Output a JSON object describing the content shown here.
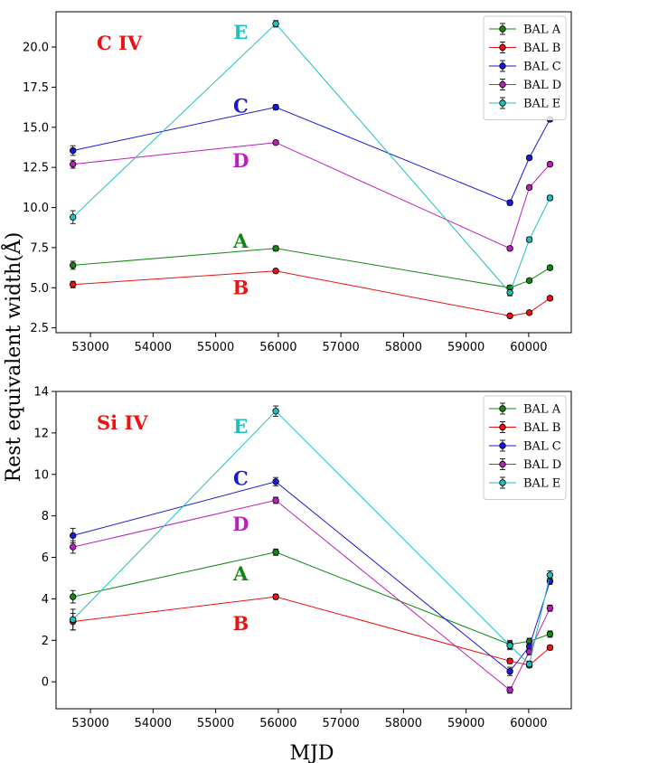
{
  "figure": {
    "ylabel": "Rest equivalent width(Å)",
    "xlabel": "MJD"
  },
  "chart_data": [
    {
      "type": "line",
      "title": "C IV",
      "xlim": [
        52450,
        60680
      ],
      "ylim": [
        2.2,
        22.2
      ],
      "x_ticks": [
        53000,
        54000,
        55000,
        56000,
        57000,
        58000,
        59000,
        60000
      ],
      "y_ticks": [
        2.5,
        5.0,
        7.5,
        10.0,
        12.5,
        15.0,
        17.5,
        20.0
      ],
      "x": [
        52720,
        55960,
        59700,
        60010,
        60340
      ],
      "series": [
        {
          "name": "BAL A",
          "color": "#138613",
          "label": "A",
          "label_at": [
            55400,
            7.9
          ],
          "values": [
            6.4,
            7.45,
            5.0,
            5.45,
            6.25
          ],
          "errors": [
            0.25,
            0.15,
            0.15,
            0.12,
            0.12
          ]
        },
        {
          "name": "BAL B",
          "color": "#ee1111",
          "label": "B",
          "label_at": [
            55400,
            5.0
          ],
          "values": [
            5.2,
            6.05,
            3.25,
            3.45,
            4.35
          ],
          "errors": [
            0.2,
            0.12,
            0.1,
            0.1,
            0.12
          ]
        },
        {
          "name": "BAL C",
          "color": "#1a1ad6",
          "label": "C",
          "label_at": [
            55400,
            16.3
          ],
          "values": [
            13.55,
            16.25,
            10.3,
            13.1,
            15.5
          ],
          "errors": [
            0.3,
            0.15,
            0.15,
            0.12,
            0.12
          ]
        },
        {
          "name": "BAL D",
          "color": "#bb1fbb",
          "label": "D",
          "label_at": [
            55400,
            12.9
          ],
          "values": [
            12.7,
            14.05,
            7.45,
            11.25,
            12.7
          ],
          "errors": [
            0.25,
            0.12,
            0.12,
            0.12,
            0.12
          ]
        },
        {
          "name": "BAL E",
          "color": "#20bfbf",
          "label": "E",
          "label_at": [
            55400,
            20.9
          ],
          "values": [
            9.4,
            21.45,
            4.7,
            8.0,
            10.6
          ],
          "errors": [
            0.4,
            0.2,
            0.2,
            0.15,
            0.15
          ]
        }
      ]
    },
    {
      "type": "line",
      "title": "Si IV",
      "xlim": [
        52450,
        60680
      ],
      "ylim": [
        -1.3,
        14.0
      ],
      "x_ticks": [
        53000,
        54000,
        55000,
        56000,
        57000,
        58000,
        59000,
        60000
      ],
      "y_ticks": [
        0,
        2,
        4,
        6,
        8,
        10,
        12,
        14
      ],
      "x": [
        52720,
        55960,
        59700,
        60010,
        60340
      ],
      "series": [
        {
          "name": "BAL A",
          "color": "#138613",
          "label": "A",
          "label_at": [
            55400,
            5.2
          ],
          "values": [
            4.1,
            6.25,
            1.8,
            1.95,
            2.3
          ],
          "errors": [
            0.3,
            0.15,
            0.2,
            0.15,
            0.15
          ]
        },
        {
          "name": "BAL B",
          "color": "#ee1111",
          "label": "B",
          "label_at": [
            55400,
            2.8
          ],
          "values": [
            2.9,
            4.1,
            1.0,
            0.8,
            1.65
          ],
          "errors": [
            0.4,
            0.12,
            0.12,
            0.1,
            0.1
          ]
        },
        {
          "name": "BAL C",
          "color": "#1a1ad6",
          "label": "C",
          "label_at": [
            55400,
            9.8
          ],
          "values": [
            7.05,
            9.65,
            0.5,
            1.7,
            4.85
          ],
          "errors": [
            0.35,
            0.2,
            0.2,
            0.15,
            0.15
          ]
        },
        {
          "name": "BAL D",
          "color": "#bb1fbb",
          "label": "D",
          "label_at": [
            55400,
            7.6
          ],
          "values": [
            6.5,
            8.75,
            -0.4,
            1.45,
            3.55
          ],
          "errors": [
            0.3,
            0.15,
            0.15,
            0.15,
            0.15
          ]
        },
        {
          "name": "BAL E",
          "color": "#20bfbf",
          "label": "E",
          "label_at": [
            55400,
            12.3
          ],
          "values": [
            3.0,
            13.05,
            1.75,
            0.85,
            5.15
          ],
          "errors": [
            0.5,
            0.25,
            0.2,
            0.15,
            0.2
          ]
        }
      ]
    }
  ]
}
